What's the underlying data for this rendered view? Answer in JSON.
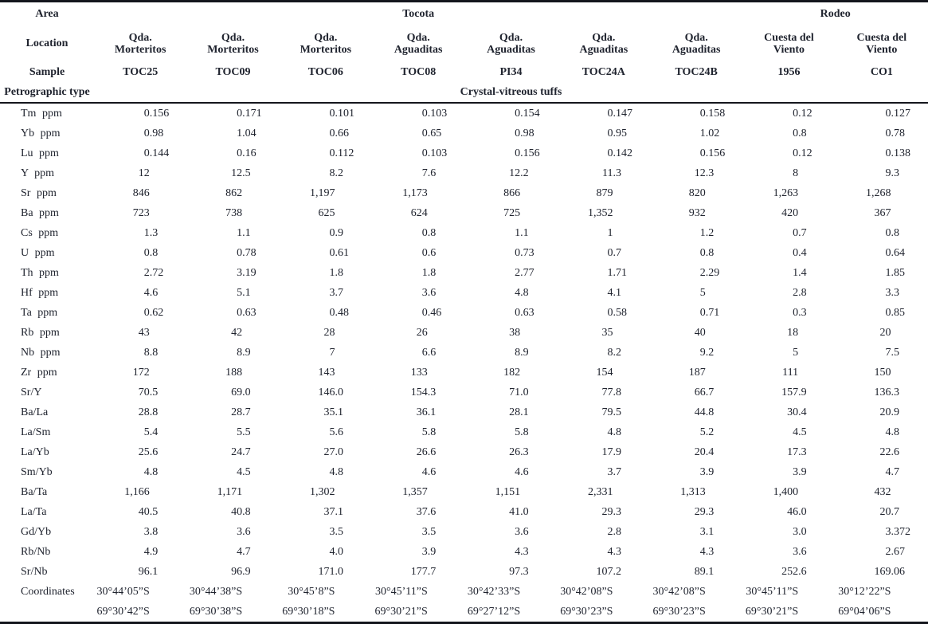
{
  "table": {
    "header": {
      "area_label": "Area",
      "location_label": "Location",
      "sample_label": "Sample",
      "petro_label": "Petrographic type",
      "petro_value": "Crystal-vitreous tuffs",
      "area_groups": [
        {
          "name": "Tocota",
          "span": 7
        },
        {
          "name": "Rodeo",
          "span": 2
        }
      ],
      "locations": [
        "Qda. Morteritos",
        "Qda. Morteritos",
        "Qda. Morteritos",
        "Qda. Aguaditas",
        "Qda. Aguaditas",
        "Qda. Aguaditas",
        "Qda. Aguaditas",
        "Cuesta del Viento",
        "Cuesta del Viento"
      ],
      "samples": [
        "TOC25",
        "TOC09",
        "TOC06",
        "TOC08",
        "PI34",
        "TOC24A",
        "TOC24B",
        "1956",
        "CO1"
      ]
    },
    "rows": [
      {
        "label": "Tm ppm",
        "values": [
          "0.156",
          "0.171",
          "0.101",
          "0.103",
          "0.154",
          "0.147",
          "0.158",
          "0.12",
          "0.127"
        ]
      },
      {
        "label": "Yb ppm",
        "values": [
          "0.98",
          "1.04",
          "0.66",
          "0.65",
          "0.98",
          "0.95",
          "1.02",
          "0.8",
          "0.78"
        ]
      },
      {
        "label": "Lu ppm",
        "values": [
          "0.144",
          "0.16",
          "0.112",
          "0.103",
          "0.156",
          "0.142",
          "0.156",
          "0.12",
          "0.138"
        ]
      },
      {
        "label": "Y ppm",
        "values": [
          "12",
          "12.5",
          "8.2",
          "7.6",
          "12.2",
          "11.3",
          "12.3",
          "8",
          "9.3"
        ]
      },
      {
        "label": "Sr ppm",
        "values": [
          "846",
          "862",
          "1,197",
          "1,173",
          "866",
          "879",
          "820",
          "1,263",
          "1,268"
        ]
      },
      {
        "label": "Ba ppm",
        "values": [
          "723",
          "738",
          "625",
          "624",
          "725",
          "1,352",
          "932",
          "420",
          "367"
        ]
      },
      {
        "label": "Cs ppm",
        "values": [
          "1.3",
          "1.1",
          "0.9",
          "0.8",
          "1.1",
          "1",
          "1.2",
          "0.7",
          "0.8"
        ]
      },
      {
        "label": "U ppm",
        "values": [
          "0.8",
          "0.78",
          "0.61",
          "0.6",
          "0.73",
          "0.7",
          "0.8",
          "0.4",
          "0.64"
        ]
      },
      {
        "label": "Th ppm",
        "values": [
          "2.72",
          "3.19",
          "1.8",
          "1.8",
          "2.77",
          "1.71",
          "2.29",
          "1.4",
          "1.85"
        ]
      },
      {
        "label": "Hf ppm",
        "values": [
          "4.6",
          "5.1",
          "3.7",
          "3.6",
          "4.8",
          "4.1",
          "5",
          "2.8",
          "3.3"
        ]
      },
      {
        "label": "Ta ppm",
        "values": [
          "0.62",
          "0.63",
          "0.48",
          "0.46",
          "0.63",
          "0.58",
          "0.71",
          "0.3",
          "0.85"
        ]
      },
      {
        "label": "Rb ppm",
        "values": [
          "43",
          "42",
          "28",
          "26",
          "38",
          "35",
          "40",
          "18",
          "20"
        ]
      },
      {
        "label": "Nb ppm",
        "values": [
          "8.8",
          "8.9",
          "7",
          "6.6",
          "8.9",
          "8.2",
          "9.2",
          "5",
          "7.5"
        ]
      },
      {
        "label": "Zr ppm",
        "values": [
          "172",
          "188",
          "143",
          "133",
          "182",
          "154",
          "187",
          "111",
          "150"
        ]
      },
      {
        "label": "Sr/Y",
        "values": [
          "70.5",
          "69.0",
          "146.0",
          "154.3",
          "71.0",
          "77.8",
          "66.7",
          "157.9",
          "136.3"
        ]
      },
      {
        "label": "Ba/La",
        "values": [
          "28.8",
          "28.7",
          "35.1",
          "36.1",
          "28.1",
          "79.5",
          "44.8",
          "30.4",
          "20.9"
        ]
      },
      {
        "label": "La/Sm",
        "values": [
          "5.4",
          "5.5",
          "5.6",
          "5.8",
          "5.8",
          "4.8",
          "5.2",
          "4.5",
          "4.8"
        ]
      },
      {
        "label": "La/Yb",
        "values": [
          "25.6",
          "24.7",
          "27.0",
          "26.6",
          "26.3",
          "17.9",
          "20.4",
          "17.3",
          "22.6"
        ]
      },
      {
        "label": "Sm/Yb",
        "values": [
          "4.8",
          "4.5",
          "4.8",
          "4.6",
          "4.6",
          "3.7",
          "3.9",
          "3.9",
          "4.7"
        ]
      },
      {
        "label": "Ba/Ta",
        "values": [
          "1,166",
          "1,171",
          "1,302",
          "1,357",
          "1,151",
          "2,331",
          "1,313",
          "1,400",
          "432"
        ]
      },
      {
        "label": "La/Ta",
        "values": [
          "40.5",
          "40.8",
          "37.1",
          "37.6",
          "41.0",
          "29.3",
          "29.3",
          "46.0",
          "20.7"
        ]
      },
      {
        "label": "Gd/Yb",
        "values": [
          "3.8",
          "3.6",
          "3.5",
          "3.5",
          "3.6",
          "2.8",
          "3.1",
          "3.0",
          "3.372"
        ]
      },
      {
        "label": "Rb/Nb",
        "values": [
          "4.9",
          "4.7",
          "4.0",
          "3.9",
          "4.3",
          "4.3",
          "4.3",
          "3.6",
          "2.67"
        ]
      },
      {
        "label": "Sr/Nb",
        "values": [
          "96.1",
          "96.9",
          "171.0",
          "177.7",
          "97.3",
          "107.2",
          "89.1",
          "252.6",
          "169.06"
        ]
      }
    ],
    "coordinates": {
      "label": "Coordinates",
      "line1": [
        "30°44’05”S",
        "30°44’38”S",
        "30°45’8”S",
        "30°45’11”S",
        "30°42’33”S",
        "30°42’08”S",
        "30°42’08”S",
        "30°45’11”S",
        "30°12’22”S"
      ],
      "line2": [
        "69°30’42”S",
        "69°30’38”S",
        "69°30’18”S",
        "69°30’21”S",
        "69°27’12”S",
        "69°30’23”S",
        "69°30’23”S",
        "69°30’21”S",
        "69°04’06”S"
      ]
    },
    "colors": {
      "text": "#20242f",
      "rule": "#14161d",
      "background": "#ffffff"
    }
  }
}
